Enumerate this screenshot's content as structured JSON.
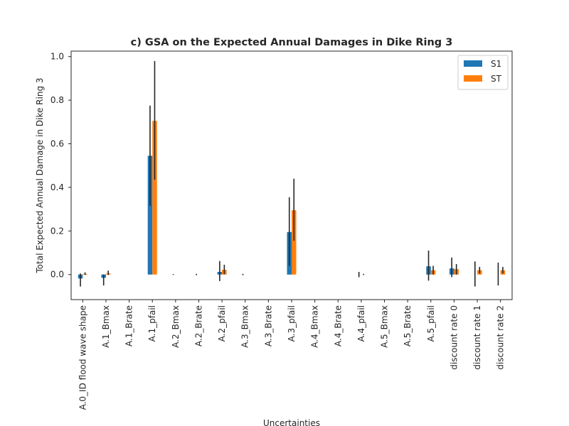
{
  "chart_data": {
    "type": "bar",
    "title": "c) GSA on the Expected Annual Damages in Dike Ring 3",
    "xlabel": "Uncertainties",
    "ylabel": "Total Expected Annual Damage in Dike Ring 3",
    "ylim": [
      -0.115,
      1.025
    ],
    "yticks": [
      0.0,
      0.2,
      0.4,
      0.6,
      0.8,
      1.0
    ],
    "ytick_labels": [
      "0.0",
      "0.2",
      "0.4",
      "0.6",
      "0.8",
      "1.0"
    ],
    "grid": false,
    "legend_position": "top-right",
    "categories": [
      "A.0_ID flood wave shape",
      "A.1_Bmax",
      "A.1_Brate",
      "A.1_pfail",
      "A.2_Bmax",
      "A.2_Brate",
      "A.2_pfail",
      "A.3_Bmax",
      "A.3_Brate",
      "A.3_pfail",
      "A.4_Bmax",
      "A.4_Brate",
      "A.4_pfail",
      "A.5_Bmax",
      "A.5_Brate",
      "A.5_pfail",
      "discount rate 0",
      "discount rate 1",
      "discount rate 2"
    ],
    "series": [
      {
        "name": "S1",
        "color": "#1f77b4",
        "values": [
          -0.018,
          -0.015,
          0.0,
          0.545,
          0.0,
          0.0,
          0.012,
          0.0,
          0.0,
          0.195,
          0.0,
          0.0,
          0.0,
          0.0,
          0.0,
          0.038,
          0.028,
          0.0,
          0.0
        ],
        "error_low": [
          -0.055,
          -0.05,
          0.0,
          0.315,
          -0.002,
          -0.003,
          -0.03,
          -0.003,
          0.0,
          0.04,
          0.0,
          0.0,
          -0.012,
          0.0,
          0.0,
          -0.028,
          -0.012,
          -0.055,
          -0.05
        ],
        "error_high": [
          0.005,
          0.0,
          0.0,
          0.775,
          0.002,
          0.003,
          0.062,
          0.003,
          0.0,
          0.355,
          0.0,
          0.0,
          0.012,
          0.0,
          0.0,
          0.11,
          0.078,
          0.06,
          0.055
        ]
      },
      {
        "name": "ST",
        "color": "#ff7f0e",
        "values": [
          0.003,
          0.005,
          0.0,
          0.705,
          0.0,
          0.0,
          0.022,
          0.0,
          0.0,
          0.295,
          0.0,
          0.0,
          0.0,
          0.0,
          0.0,
          0.02,
          0.025,
          0.02,
          0.02
        ],
        "error_low": [
          -0.002,
          -0.002,
          0.0,
          0.435,
          0.0,
          0.0,
          0.002,
          0.0,
          0.0,
          0.155,
          0.0,
          0.0,
          -0.002,
          0.0,
          0.0,
          0.0,
          0.0,
          0.005,
          0.005
        ],
        "error_high": [
          0.01,
          0.018,
          0.0,
          0.98,
          0.0,
          0.0,
          0.045,
          0.0,
          0.0,
          0.44,
          0.0,
          0.0,
          0.003,
          0.0,
          0.0,
          0.04,
          0.048,
          0.035,
          0.035
        ]
      }
    ]
  }
}
